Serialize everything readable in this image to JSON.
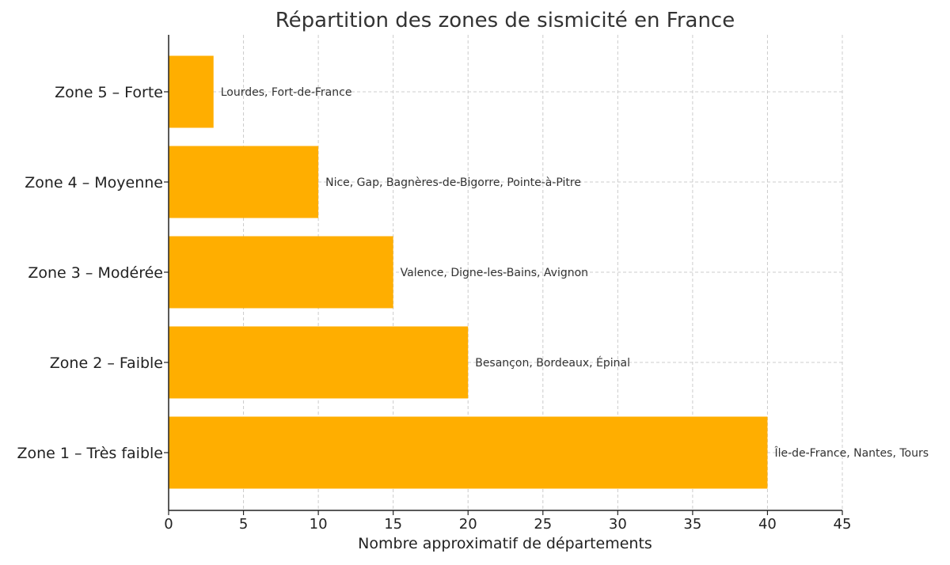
{
  "chart_data": {
    "type": "bar",
    "orientation": "horizontal",
    "title": "Répartition des zones de sismicité en France",
    "xlabel": "Nombre approximatif de départements",
    "ylabel": "",
    "xlim": [
      0,
      45
    ],
    "xticks": [
      0,
      5,
      10,
      15,
      20,
      25,
      30,
      35,
      40,
      45
    ],
    "grid": true,
    "bar_color": "#FFAE00",
    "categories": [
      "Zone 5 – Forte",
      "Zone 4 – Moyenne",
      "Zone 3 – Modérée",
      "Zone 2 – Faible",
      "Zone 1 – Très faible"
    ],
    "values": [
      3,
      10,
      15,
      20,
      40
    ],
    "annotations": [
      "Lourdes, Fort-de-France",
      "Nice, Gap, Bagnères-de-Bigorre, Pointe-à-Pitre",
      "Valence, Digne-les-Bains, Avignon",
      "Besançon, Bordeaux, Épinal",
      "Île-de-France, Nantes, Tours"
    ]
  }
}
